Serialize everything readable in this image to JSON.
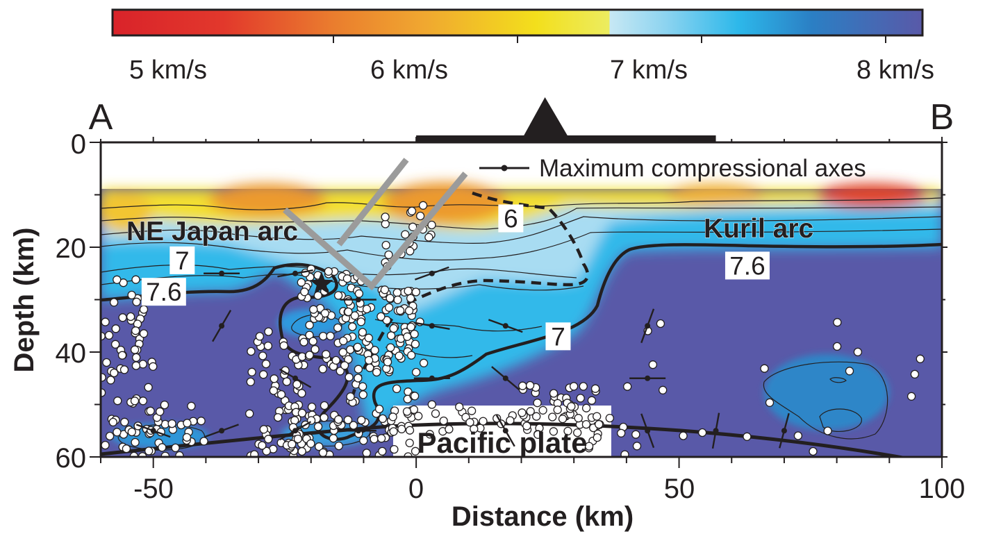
{
  "colorbar": {
    "labels": [
      "5 km/s",
      "6 km/s",
      "7 km/s",
      "8 km/s"
    ],
    "values": [
      5,
      6,
      7,
      8
    ],
    "range": [
      3.8,
      8.2
    ],
    "stops": [
      {
        "v": 3.8,
        "color": "#d9232a"
      },
      {
        "v": 4.4,
        "color": "#e2382c"
      },
      {
        "v": 5.0,
        "color": "#ea7d2e"
      },
      {
        "v": 5.5,
        "color": "#f0a830"
      },
      {
        "v": 6.1,
        "color": "#f3df1c"
      },
      {
        "v": 6.5,
        "color": "#ecec60"
      },
      {
        "v": 6.5,
        "color": "#c7e8f4"
      },
      {
        "v": 6.8,
        "color": "#8ed4f0"
      },
      {
        "v": 7.2,
        "color": "#2db8ea"
      },
      {
        "v": 7.6,
        "color": "#2b7fc4"
      },
      {
        "v": 8.2,
        "color": "#5959a8"
      }
    ]
  },
  "profile": {
    "start_label": "A",
    "end_label": "B"
  },
  "axes": {
    "xlabel": "Distance (km)",
    "ylabel": "Depth (km)",
    "xlim": [
      -60,
      100
    ],
    "ylim": [
      0,
      60
    ],
    "xticks": [
      "-50",
      "0",
      "50",
      "100"
    ],
    "yticks": [
      "0",
      "20",
      "40",
      "60"
    ],
    "xtick_values": [
      -50,
      0,
      50,
      100
    ],
    "ytick_values": [
      0,
      20,
      40,
      60
    ]
  },
  "legend": {
    "label": "Maximum compressional axes"
  },
  "labels": {
    "ne_japan_arc": "NE Japan arc",
    "kuril_arc": "Kuril arc",
    "pacific_plate": "Pacific plate"
  },
  "contour_labels": [
    {
      "text": "7",
      "x": -44.5,
      "y": 22.5
    },
    {
      "text": "7.6",
      "x": -48,
      "y": 28.5
    },
    {
      "text": "6",
      "x": 18,
      "y": 14.5
    },
    {
      "text": "7",
      "x": 27,
      "y": 37
    },
    {
      "text": "7.6",
      "x": 63,
      "y": 23.5
    }
  ],
  "velocity_model_top_km": 9,
  "mainshock": {
    "x": -18,
    "y": 27
  },
  "station_bar": {
    "x_from": 0,
    "x_to": 57
  },
  "station": {
    "x": 24.5
  },
  "compressional_axes": [
    {
      "x": -37,
      "y": 25,
      "azimuth": 90
    },
    {
      "x": -23,
      "y": 25,
      "azimuth": 80
    },
    {
      "x": -37,
      "y": 35,
      "azimuth": 30
    },
    {
      "x": -11,
      "y": 30,
      "azimuth": 90
    },
    {
      "x": 3,
      "y": 25,
      "azimuth": 70
    },
    {
      "x": 3,
      "y": 35,
      "azimuth": 100
    },
    {
      "x": 17,
      "y": 35,
      "azimuth": 110
    },
    {
      "x": 44,
      "y": 35,
      "azimuth": 20
    },
    {
      "x": -23,
      "y": 45,
      "azimuth": 120
    },
    {
      "x": 3,
      "y": 45,
      "azimuth": 90
    },
    {
      "x": 17,
      "y": 45,
      "azimuth": 130
    },
    {
      "x": 44,
      "y": 45,
      "azimuth": 90
    },
    {
      "x": -50,
      "y": 55,
      "azimuth": 110
    },
    {
      "x": -37,
      "y": 55,
      "azimuth": 70
    },
    {
      "x": -23,
      "y": 55,
      "azimuth": 60
    },
    {
      "x": -11,
      "y": 55,
      "azimuth": 90
    },
    {
      "x": 17,
      "y": 55,
      "azimuth": 150
    },
    {
      "x": 44,
      "y": 55,
      "azimuth": 160
    },
    {
      "x": 57,
      "y": 55,
      "azimuth": 10
    },
    {
      "x": 70,
      "y": 55,
      "azimuth": 15
    }
  ],
  "colors": {
    "frame": "#231f20",
    "gray_marker": "#9b9b9b",
    "quake_fill": "#ffffff",
    "quake_stroke": "#231f20"
  }
}
